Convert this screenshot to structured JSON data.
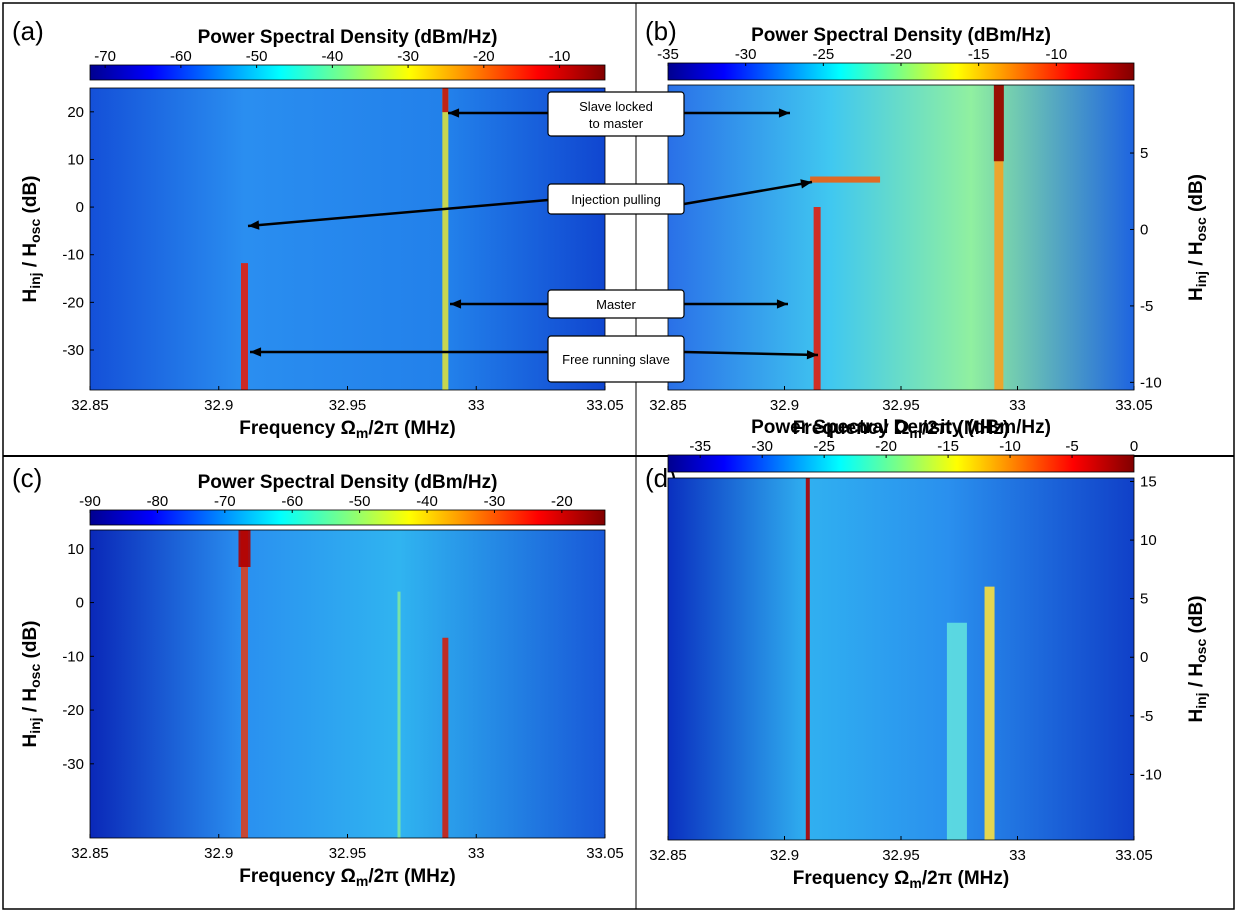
{
  "panels": [
    {
      "label": "(a)",
      "colorbar_title": "Power Spectral Density (dBm/Hz)",
      "clim": [
        -72,
        -4
      ],
      "cticks": [
        -70,
        -60,
        -50,
        -40,
        -30,
        -20,
        -10
      ],
      "xlim": [
        32.85,
        33.05
      ],
      "xticks": [
        32.85,
        32.9,
        32.95,
        33,
        33.05
      ],
      "ylim": [
        -38.4,
        25
      ],
      "yticks": [
        -30,
        -20,
        -10,
        0,
        10,
        20
      ],
      "xlabel": [
        "Frequency Ω",
        "m",
        "/2π (MHz)"
      ],
      "ylabel": [
        "H",
        "inj",
        " / H",
        "osc",
        " (dB)"
      ]
    },
    {
      "label": "(b)",
      "colorbar_title": "Power Spectral Density (dBm/Hz)",
      "clim": [
        -35,
        -5
      ],
      "cticks": [
        -35,
        -30,
        -25,
        -20,
        -15,
        -10
      ],
      "xlim": [
        32.85,
        33.05
      ],
      "xticks": [
        32.85,
        32.9,
        32.95,
        33,
        33.05
      ],
      "ylim": [
        -10.5,
        9.45
      ],
      "yticks": [
        -10,
        -5,
        0,
        5
      ],
      "xlabel": [
        "Frequency Ω",
        "m",
        "/2π (MHz)"
      ],
      "ylabel": [
        "H",
        "inj",
        " / H",
        "osc",
        " (dB)"
      ]
    },
    {
      "label": "(c)",
      "colorbar_title": "Power Spectral Density (dBm/Hz)",
      "clim": [
        -90,
        -13.6
      ],
      "cticks": [
        -90,
        -80,
        -70,
        -60,
        -50,
        -40,
        -30,
        -20
      ],
      "xlim": [
        32.85,
        33.05
      ],
      "xticks": [
        32.85,
        32.9,
        32.95,
        33,
        33.05
      ],
      "ylim": [
        -43.8,
        13.5
      ],
      "yticks": [
        -30,
        -20,
        -10,
        0,
        10
      ],
      "xlabel": [
        "Frequency Ω",
        "m",
        "/2π (MHz)"
      ],
      "ylabel": [
        "H",
        "inj",
        " / H",
        "osc",
        " (dB)"
      ]
    },
    {
      "label": "(d)",
      "colorbar_title": "Power Spectral Density (dBm/Hz)",
      "clim": [
        -37.6,
        0
      ],
      "cticks": [
        -35,
        -30,
        -25,
        -20,
        -15,
        -10,
        -5,
        0
      ],
      "xlim": [
        32.85,
        33.05
      ],
      "xticks": [
        32.85,
        32.9,
        32.95,
        33,
        33.05
      ],
      "ylim": [
        -15.6,
        15.3
      ],
      "yticks": [
        -10,
        -5,
        0,
        5,
        10,
        15
      ],
      "xlabel": [
        "Frequency Ω",
        "m",
        "/2π (MHz)"
      ],
      "ylabel": [
        "H",
        "inj",
        " / H",
        "osc",
        " (dB)"
      ]
    }
  ],
  "annotations": [
    "Slave locked to master",
    "Injection pulling",
    "Master",
    "Free running slave"
  ]
}
